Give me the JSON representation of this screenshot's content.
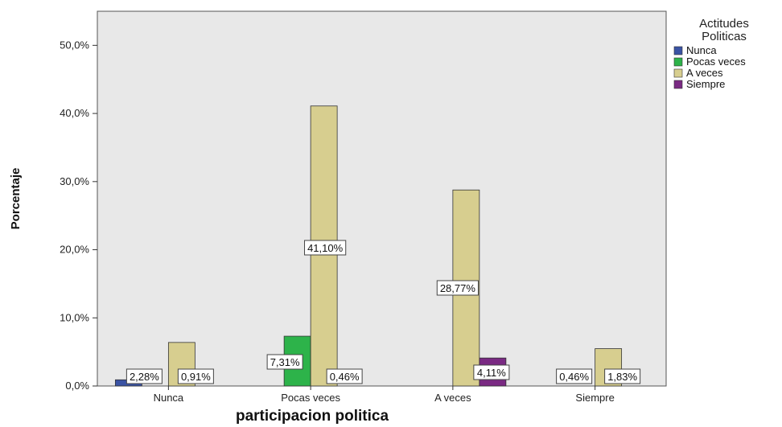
{
  "chart_data": {
    "type": "bar",
    "categories": [
      "Nunca",
      "Pocas veces",
      "A veces",
      "Siempre"
    ],
    "series": [
      {
        "name": "Nunca",
        "color": "#3a53a4",
        "values": [
          0.91,
          0,
          0,
          0
        ]
      },
      {
        "name": "Pocas veces",
        "color": "#2db34a",
        "values": [
          0,
          7.31,
          0,
          0
        ]
      },
      {
        "name": "A veces",
        "color": "#d7ce8f",
        "values": [
          6.39,
          41.1,
          28.77,
          5.48
        ]
      },
      {
        "name": "Siempre",
        "color": "#7a2a83",
        "values": [
          0,
          0,
          4.11,
          0
        ]
      }
    ],
    "data_labels": [
      {
        "category": "Nunca",
        "text": "2,28%"
      },
      {
        "category": "Nunca",
        "text": "0,91%"
      },
      {
        "category": "Pocas veces",
        "text": "41,10%"
      },
      {
        "category": "Pocas veces",
        "text": "7,31%"
      },
      {
        "category": "Pocas veces",
        "text": "0,46%"
      },
      {
        "category": "A veces",
        "text": "28,77%"
      },
      {
        "category": "A veces",
        "text": "4,11%"
      },
      {
        "category": "Siempre",
        "text": "0,46%"
      },
      {
        "category": "Siempre",
        "text": "1,83%"
      }
    ],
    "y_ticks": [
      "0,0%",
      "10,0%",
      "20,0%",
      "30,0%",
      "40,0%",
      "50,0%"
    ],
    "ylim": [
      0,
      55
    ],
    "xlabel": "participacion politica",
    "ylabel": "Porcentaje",
    "legend": {
      "title_lines": [
        "Actitudes",
        "Politicas"
      ],
      "position": "top-right"
    },
    "grid": false,
    "plot_background": "#e8e8e8"
  }
}
